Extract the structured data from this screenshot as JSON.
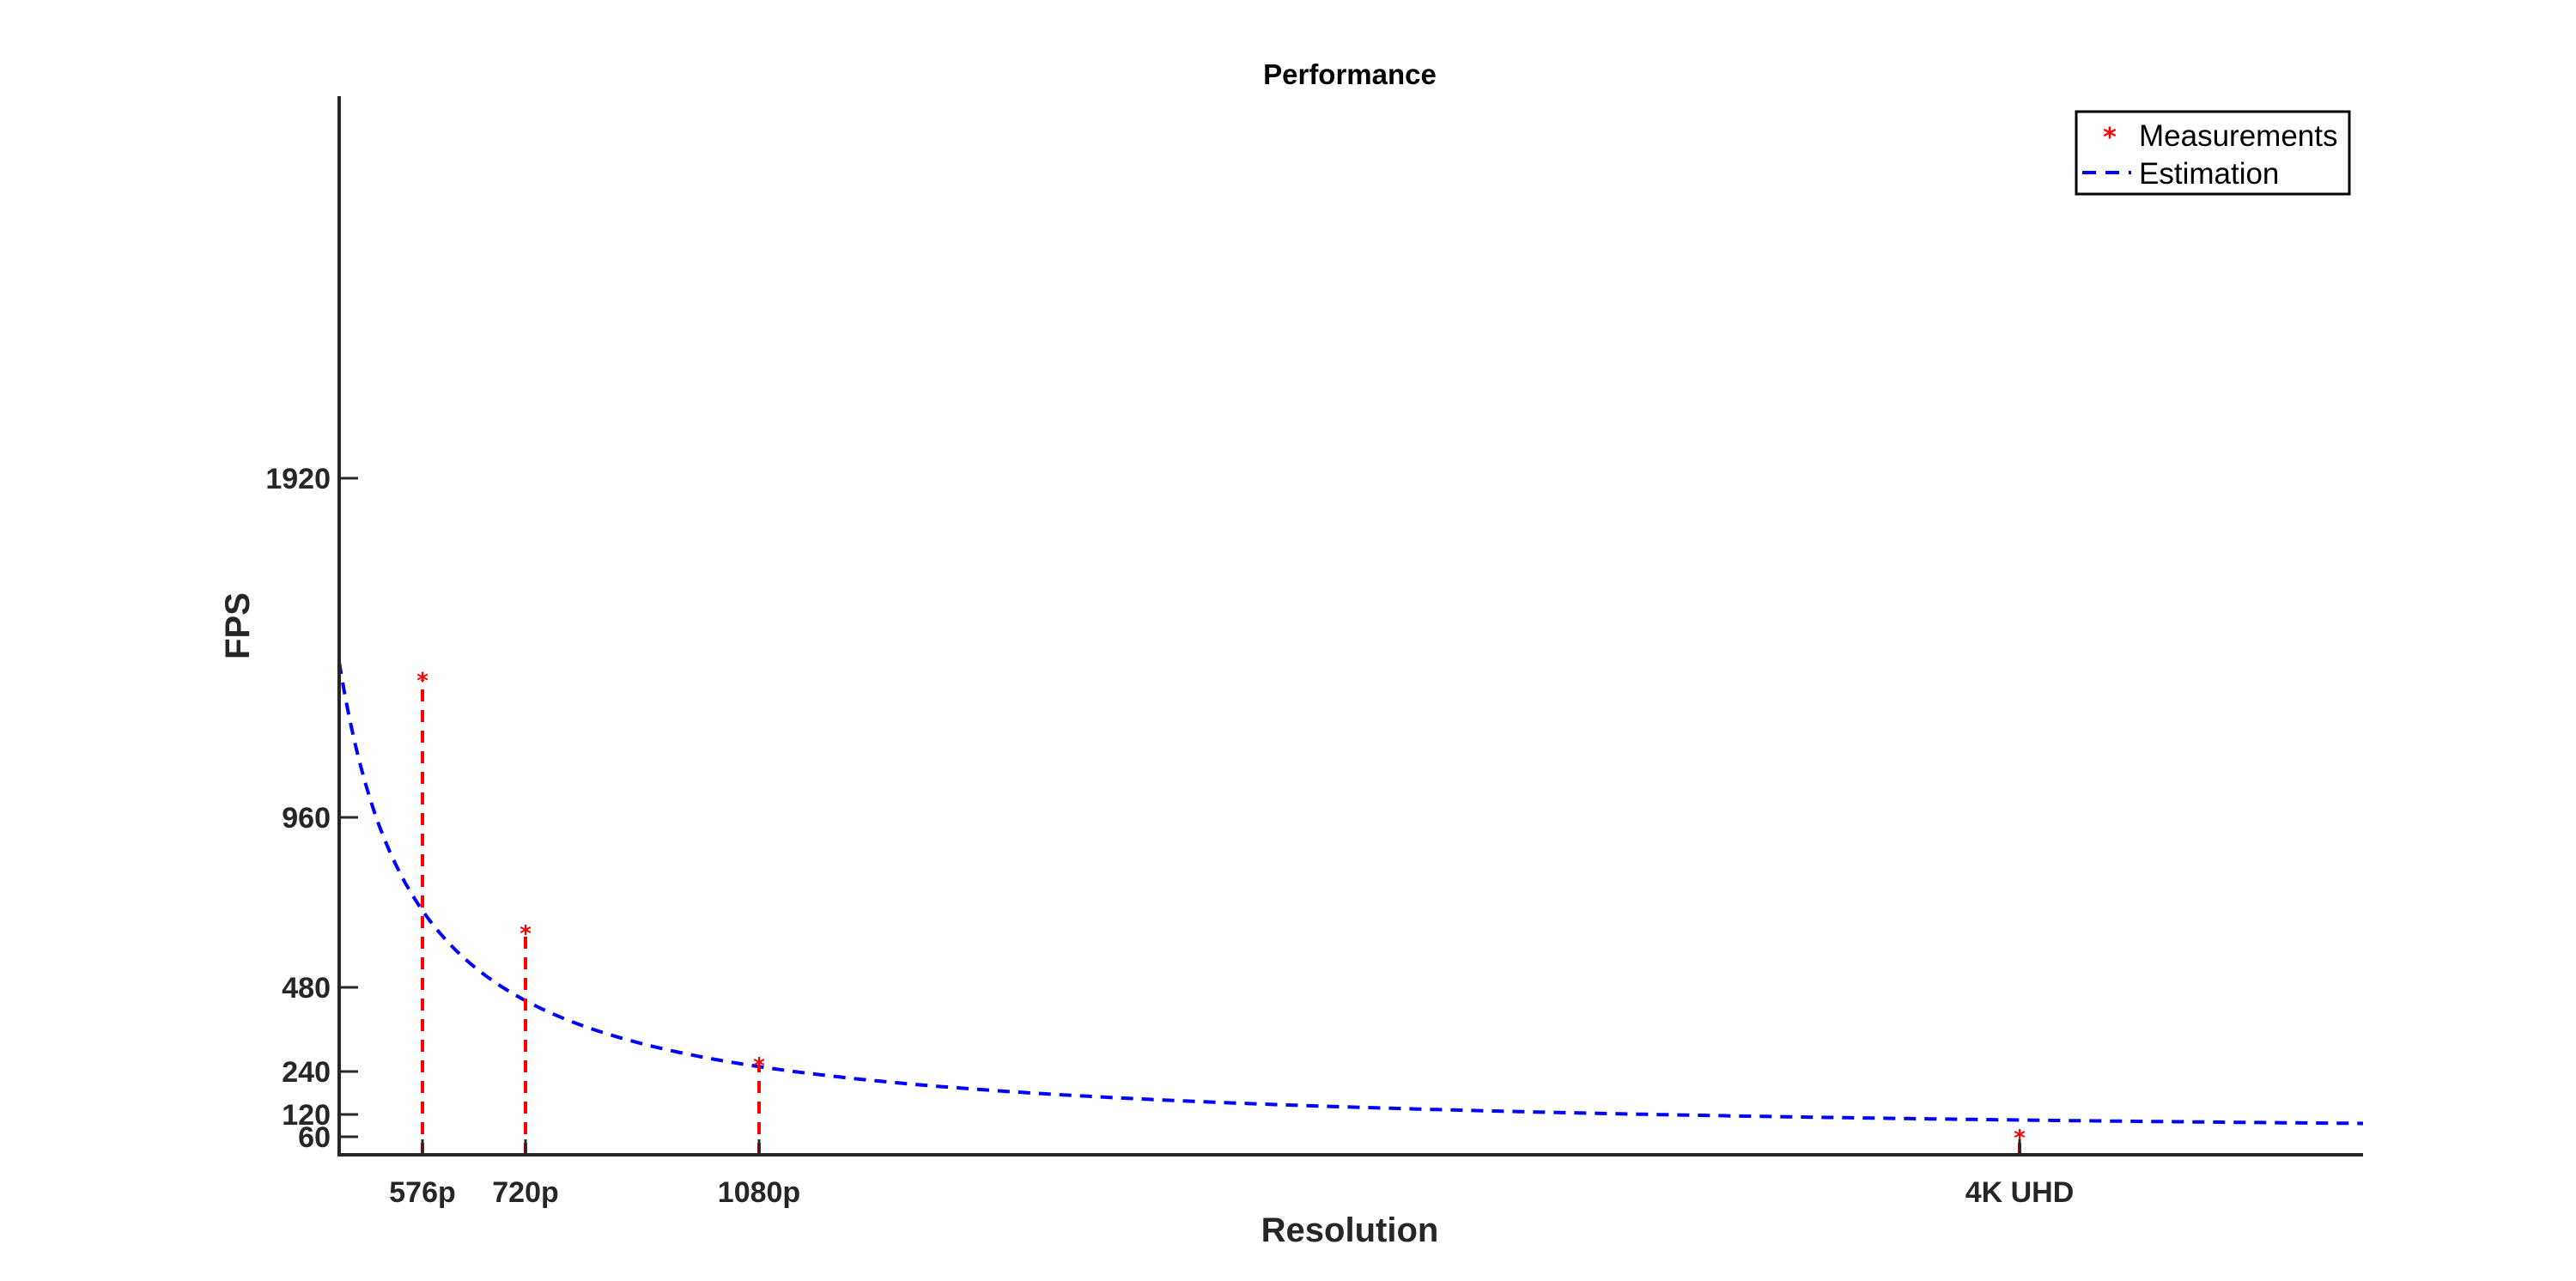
{
  "chart_data": {
    "type": "line",
    "title": "Performance",
    "xlabel": "Resolution",
    "ylabel": "FPS",
    "x_quantity": "pixels",
    "xlim": [
      0,
      8294400
    ],
    "ylim": [
      0,
      2880
    ],
    "x_ticks": [
      {
        "label": "576p",
        "value": 414720
      },
      {
        "label": "720p",
        "value": 921600
      },
      {
        "label": "1080p",
        "value": 2073600
      },
      {
        "label": "4K UHD",
        "value": 8294400
      }
    ],
    "y_ticks": [
      {
        "label": "60",
        "value": 60
      },
      {
        "label": "120",
        "value": 120
      },
      {
        "label": "240",
        "value": 240
      },
      {
        "label": "480",
        "value": 480
      },
      {
        "label": "960",
        "value": 960
      },
      {
        "label": "1920",
        "value": 1920
      }
    ],
    "series": [
      {
        "name": "Measurements",
        "kind": "scatter",
        "color": "#ff0000",
        "marker": "asterisk",
        "x": [
          414720,
          921600,
          2073600,
          8294400
        ],
        "y": [
          1350,
          635,
          260,
          60
        ]
      },
      {
        "name": "Estimation",
        "kind": "line",
        "color": "#0000ff",
        "style": "dashed",
        "model": "fps = 4.0e8 / (pixels + 6.0e4)"
      }
    ],
    "stems": {
      "color": "#ff0000",
      "style": "dashed"
    },
    "grid": false,
    "legend_position": "top-right"
  }
}
